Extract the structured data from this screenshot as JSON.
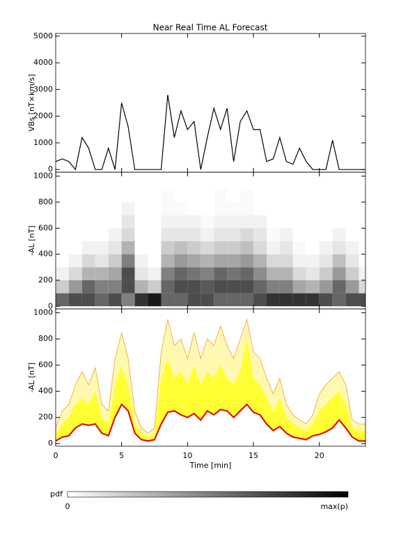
{
  "chart_data": [
    {
      "type": "line",
      "title": "Near Real Time AL Forecast",
      "ylabel": "VBs [nT×km/s]",
      "color": "#000000",
      "x": [
        0,
        0.5,
        1,
        1.5,
        2,
        2.5,
        3,
        3.5,
        4,
        4.5,
        5,
        5.5,
        6,
        6.5,
        7,
        7.5,
        8,
        8.5,
        9,
        9.5,
        10,
        10.5,
        11,
        11.5,
        12,
        12.5,
        13,
        13.5,
        14,
        14.5,
        15,
        15.5,
        16,
        16.5,
        17,
        17.5,
        18,
        18.5,
        19,
        19.5,
        20,
        20.5,
        21,
        21.5,
        22,
        22.5,
        23,
        23.5
      ],
      "values": [
        300,
        400,
        300,
        0,
        1200,
        800,
        0,
        0,
        800,
        0,
        2500,
        1600,
        0,
        0,
        0,
        0,
        0,
        2800,
        1200,
        2200,
        1500,
        1800,
        0,
        1200,
        2300,
        1500,
        2300,
        300,
        1800,
        2200,
        1500,
        1500,
        300,
        400,
        1200,
        300,
        200,
        800,
        300,
        0,
        0,
        0,
        1100,
        0,
        0,
        0,
        0,
        0
      ],
      "xlim": [
        0,
        23.5
      ],
      "xticks": [
        0,
        5,
        10,
        15,
        20
      ],
      "ylim": [
        -100,
        5100
      ],
      "yticks": [
        0,
        1000,
        2000,
        3000,
        4000,
        5000
      ]
    },
    {
      "type": "heatmap",
      "ylabel": "-AL [nT]",
      "x_bins": [
        0,
        1,
        2,
        3,
        4,
        5,
        6,
        7,
        8,
        9,
        10,
        11,
        12,
        13,
        14,
        15,
        16,
        17,
        18,
        19,
        20,
        21,
        22,
        23,
        23.5
      ],
      "y_bins": [
        0,
        100,
        200,
        300,
        400,
        500,
        600,
        700,
        800,
        900,
        1000
      ],
      "pdf": [
        [
          0.6,
          0.2,
          0.05,
          0,
          0,
          0,
          0,
          0,
          0,
          0
        ],
        [
          0.7,
          0.4,
          0.15,
          0.05,
          0,
          0,
          0,
          0,
          0,
          0
        ],
        [
          0.7,
          0.6,
          0.3,
          0.15,
          0.05,
          0,
          0,
          0,
          0,
          0
        ],
        [
          0.6,
          0.5,
          0.3,
          0.1,
          0.05,
          0,
          0,
          0,
          0,
          0
        ],
        [
          0.7,
          0.5,
          0.35,
          0.2,
          0.1,
          0.05,
          0,
          0,
          0,
          0
        ],
        [
          0.5,
          0.7,
          0.7,
          0.5,
          0.3,
          0.15,
          0.1,
          0.05,
          0,
          0
        ],
        [
          0.8,
          0.3,
          0.1,
          0.05,
          0,
          0,
          0,
          0,
          0,
          0
        ],
        [
          0.9,
          0.2,
          0.05,
          0,
          0,
          0,
          0,
          0,
          0,
          0
        ],
        [
          0.6,
          0.6,
          0.5,
          0.3,
          0.2,
          0.1,
          0.05,
          0.02,
          0.02,
          0
        ],
        [
          0.6,
          0.7,
          0.6,
          0.4,
          0.25,
          0.1,
          0.05,
          0.02,
          0,
          0
        ],
        [
          0.7,
          0.7,
          0.55,
          0.35,
          0.2,
          0.1,
          0.05,
          0,
          0,
          0
        ],
        [
          0.7,
          0.65,
          0.5,
          0.3,
          0.15,
          0.05,
          0.02,
          0,
          0,
          0
        ],
        [
          0.6,
          0.7,
          0.6,
          0.35,
          0.2,
          0.1,
          0.05,
          0.02,
          0.02,
          0
        ],
        [
          0.6,
          0.7,
          0.55,
          0.35,
          0.2,
          0.1,
          0.05,
          0.02,
          0,
          0
        ],
        [
          0.6,
          0.7,
          0.6,
          0.4,
          0.25,
          0.15,
          0.05,
          0.02,
          0.02,
          0
        ],
        [
          0.7,
          0.6,
          0.45,
          0.3,
          0.15,
          0.1,
          0.05,
          0,
          0,
          0
        ],
        [
          0.8,
          0.5,
          0.3,
          0.15,
          0.05,
          0.02,
          0,
          0,
          0,
          0
        ],
        [
          0.8,
          0.5,
          0.3,
          0.15,
          0.1,
          0.05,
          0,
          0,
          0,
          0
        ],
        [
          0.8,
          0.35,
          0.15,
          0.05,
          0.02,
          0,
          0,
          0,
          0,
          0
        ],
        [
          0.8,
          0.3,
          0.1,
          0.05,
          0,
          0,
          0,
          0,
          0,
          0
        ],
        [
          0.7,
          0.4,
          0.2,
          0.1,
          0.05,
          0,
          0,
          0,
          0,
          0
        ],
        [
          0.6,
          0.6,
          0.4,
          0.25,
          0.1,
          0.05,
          0,
          0,
          0,
          0
        ],
        [
          0.7,
          0.4,
          0.2,
          0.1,
          0.05,
          0,
          0,
          0,
          0,
          0
        ],
        [
          0.7,
          0.15,
          0.05,
          0,
          0,
          0,
          0,
          0,
          0,
          0
        ]
      ],
      "xlim": [
        0,
        23.5
      ],
      "xticks": [
        0,
        5,
        10,
        15,
        20
      ],
      "ylim": [
        -20,
        1030
      ],
      "yticks": [
        0,
        200,
        400,
        600,
        800,
        1000
      ]
    },
    {
      "type": "band",
      "ylabel": "-AL [nT]",
      "xlabel": "Time [min]",
      "x": [
        0,
        0.5,
        1,
        1.5,
        2,
        2.5,
        3,
        3.5,
        4,
        4.5,
        5,
        5.5,
        6,
        6.5,
        7,
        7.5,
        8,
        8.5,
        9,
        9.5,
        10,
        10.5,
        11,
        11.5,
        12,
        12.5,
        13,
        13.5,
        14,
        14.5,
        15,
        15.5,
        16,
        16.5,
        17,
        17.5,
        18,
        18.5,
        19,
        19.5,
        20,
        20.5,
        21,
        21.5,
        22,
        22.5,
        23,
        23.5
      ],
      "series": [
        {
          "color": "#fff8b0",
          "line_color": "#f0a030",
          "values": [
            120,
            250,
            300,
            450,
            550,
            450,
            580,
            300,
            250,
            650,
            850,
            650,
            250,
            120,
            80,
            120,
            700,
            950,
            750,
            800,
            650,
            850,
            650,
            800,
            750,
            900,
            750,
            650,
            800,
            950,
            700,
            650,
            500,
            380,
            500,
            300,
            220,
            180,
            150,
            220,
            380,
            450,
            500,
            550,
            450,
            180,
            150,
            150
          ]
        },
        {
          "color": "#ffff33",
          "values": [
            60,
            150,
            200,
            300,
            350,
            300,
            400,
            200,
            150,
            450,
            600,
            450,
            150,
            80,
            50,
            80,
            500,
            650,
            500,
            550,
            450,
            600,
            450,
            550,
            500,
            600,
            500,
            450,
            550,
            800,
            500,
            450,
            350,
            250,
            350,
            200,
            150,
            120,
            100,
            150,
            250,
            300,
            350,
            400,
            300,
            120,
            100,
            100
          ]
        },
        {
          "color": "#e01010",
          "values": [
            20,
            50,
            60,
            120,
            150,
            140,
            150,
            80,
            60,
            200,
            300,
            250,
            80,
            30,
            20,
            30,
            150,
            240,
            250,
            220,
            200,
            230,
            180,
            250,
            220,
            260,
            250,
            200,
            250,
            300,
            240,
            220,
            150,
            100,
            130,
            80,
            50,
            40,
            30,
            60,
            70,
            90,
            120,
            180,
            120,
            50,
            20,
            20
          ]
        }
      ],
      "xlim": [
        0,
        23.5
      ],
      "xticks": [
        0,
        5,
        10,
        15,
        20
      ],
      "ylim": [
        -20,
        1030
      ],
      "yticks": [
        0,
        200,
        400,
        600,
        800,
        1000
      ]
    },
    {
      "type": "colorbar",
      "label": "pdf",
      "min_label": "0",
      "max_label": "max(p)"
    }
  ]
}
